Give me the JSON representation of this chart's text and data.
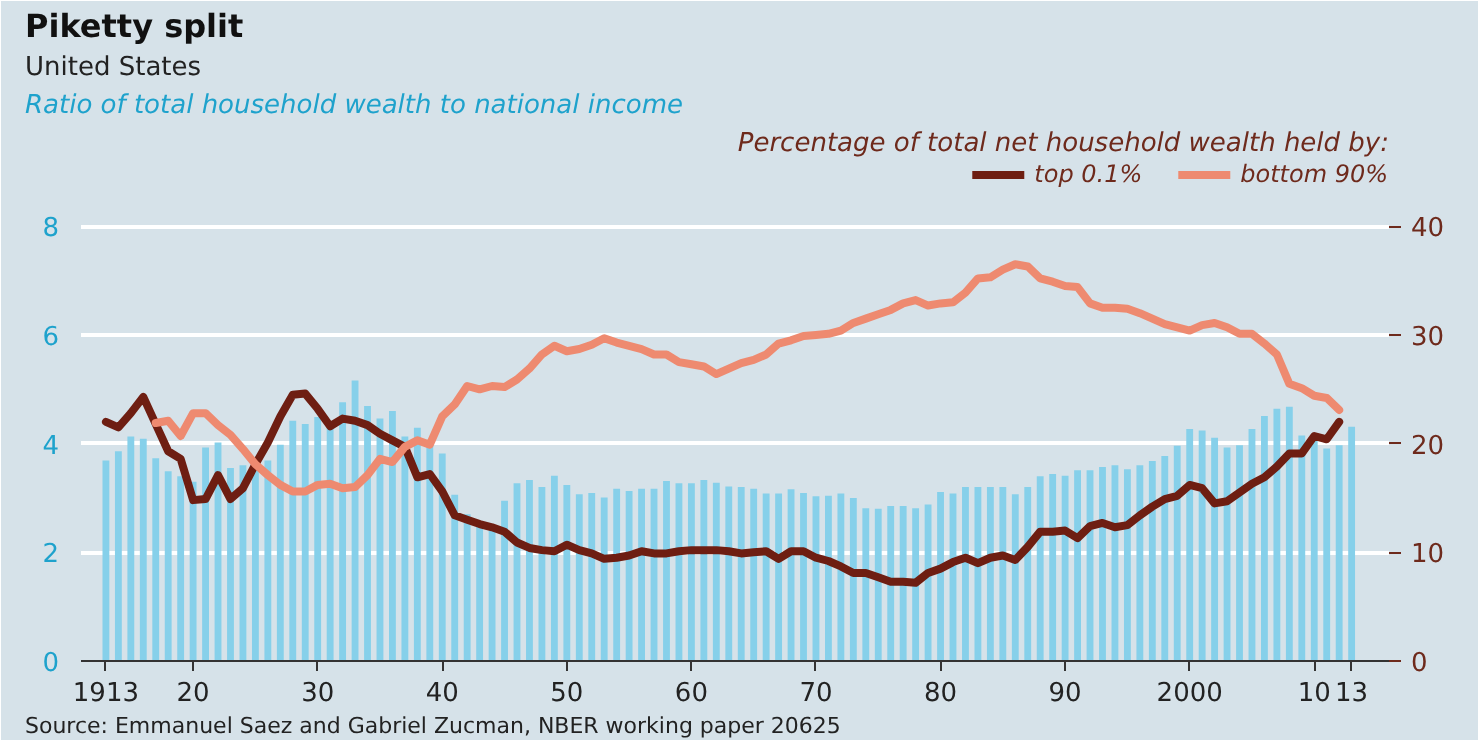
{
  "chart_data": {
    "type": "bar",
    "title": "Piketty split",
    "subtitle": "United States",
    "ylabel": "Ratio of total household wealth to national income",
    "y2label": "Percentage of total net household wealth held by:",
    "annotations": [
      "Source: Emmanuel Saez and Gabriel Zucman, NBER working paper 20625"
    ],
    "x": [
      1913,
      1914,
      1915,
      1916,
      1917,
      1918,
      1919,
      1920,
      1921,
      1922,
      1923,
      1924,
      1925,
      1926,
      1927,
      1928,
      1929,
      1930,
      1931,
      1932,
      1933,
      1934,
      1935,
      1936,
      1937,
      1938,
      1939,
      1940,
      1941,
      1942,
      1943,
      1944,
      1945,
      1946,
      1947,
      1948,
      1949,
      1950,
      1951,
      1952,
      1953,
      1954,
      1955,
      1956,
      1957,
      1958,
      1959,
      1960,
      1961,
      1962,
      1963,
      1964,
      1965,
      1966,
      1967,
      1968,
      1969,
      1970,
      1971,
      1972,
      1973,
      1974,
      1975,
      1976,
      1977,
      1978,
      1979,
      1980,
      1981,
      1982,
      1983,
      1984,
      1985,
      1986,
      1987,
      1988,
      1989,
      1990,
      1991,
      1992,
      1993,
      1994,
      1995,
      1996,
      1997,
      1998,
      1999,
      2000,
      2001,
      2002,
      2003,
      2004,
      2005,
      2006,
      2007,
      2008,
      2009,
      2010,
      2011,
      2012,
      2013
    ],
    "series": [
      {
        "color": "#86d0ea",
        "values": [
          3.69,
          3.86,
          4.13,
          4.09,
          3.73,
          3.49,
          3.4,
          3.3,
          3.93,
          4.02,
          3.55,
          3.6,
          3.5,
          3.69,
          3.98,
          4.42,
          4.36,
          4.49,
          4.3,
          4.76,
          5.16,
          4.69,
          4.46,
          4.6,
          4.13,
          4.29,
          4.0,
          3.82,
          3.06,
          2.7,
          2.5,
          2.4,
          2.95,
          3.27,
          3.33,
          3.2,
          3.41,
          3.24,
          3.07,
          3.09,
          3.01,
          3.17,
          3.13,
          3.17,
          3.17,
          3.31,
          3.27,
          3.27,
          3.33,
          3.28,
          3.21,
          3.2,
          3.17,
          3.08,
          3.08,
          3.16,
          3.09,
          3.03,
          3.04,
          3.08,
          3.0,
          2.81,
          2.8,
          2.85,
          2.85,
          2.81,
          2.88,
          3.11,
          3.08,
          3.2,
          3.2,
          3.2,
          3.2,
          3.07,
          3.2,
          3.4,
          3.44,
          3.41,
          3.51,
          3.51,
          3.57,
          3.6,
          3.53,
          3.6,
          3.68,
          3.77,
          3.96,
          4.27,
          4.24,
          4.11,
          3.93,
          3.97,
          4.27,
          4.51,
          4.64,
          4.68,
          4.15,
          4.11,
          3.91,
          3.97,
          4.31
        ]
      },
      {
        "type": "line",
        "axis": "y2",
        "name": "top 0.1%",
        "color": "#6e1e12",
        "values": [
          22.0,
          21.5,
          22.8,
          24.3,
          21.8,
          19.3,
          18.6,
          14.8,
          14.9,
          17.1,
          14.9,
          15.9,
          18.1,
          20.1,
          22.5,
          24.5,
          24.6,
          23.2,
          21.6,
          22.3,
          22.1,
          21.7,
          20.9,
          20.3,
          19.7,
          16.9,
          17.2,
          15.6,
          13.4,
          13.0,
          12.6,
          12.3,
          11.9,
          10.9,
          10.4,
          10.2,
          10.1,
          10.7,
          10.2,
          9.9,
          9.4,
          9.5,
          9.7,
          10.1,
          9.9,
          9.9,
          10.1,
          10.2,
          10.2,
          10.2,
          10.1,
          9.9,
          10.0,
          10.1,
          9.4,
          10.1,
          10.1,
          9.5,
          9.2,
          8.7,
          8.1,
          8.1,
          7.7,
          7.3,
          7.3,
          7.2,
          8.1,
          8.5,
          9.1,
          9.5,
          9.0,
          9.5,
          9.7,
          9.3,
          10.5,
          11.9,
          11.9,
          12.0,
          11.3,
          12.4,
          12.7,
          12.3,
          12.5,
          13.4,
          14.2,
          14.9,
          15.2,
          16.2,
          15.9,
          14.5,
          14.7,
          15.5,
          16.3,
          16.9,
          17.9,
          19.1,
          19.1,
          20.7,
          20.4,
          22.0,
          null
        ]
      },
      {
        "type": "line",
        "axis": "y2",
        "name": "bottom 90%",
        "color": "#ee8a70",
        "values": [
          null,
          null,
          null,
          null,
          21.9,
          22.1,
          20.7,
          22.8,
          22.8,
          21.7,
          20.8,
          19.5,
          18.1,
          17.1,
          16.2,
          15.6,
          15.6,
          16.2,
          16.3,
          15.9,
          16.0,
          17.1,
          18.6,
          18.3,
          19.7,
          20.3,
          19.9,
          22.5,
          23.6,
          25.3,
          25.0,
          25.3,
          25.2,
          25.9,
          26.9,
          28.2,
          29.0,
          28.5,
          28.7,
          29.1,
          29.7,
          29.3,
          29.0,
          28.7,
          28.2,
          28.2,
          27.5,
          27.3,
          27.1,
          26.4,
          26.9,
          27.4,
          27.7,
          28.2,
          29.2,
          29.5,
          29.9,
          30.0,
          30.1,
          30.4,
          31.1,
          31.5,
          31.9,
          32.3,
          32.9,
          33.2,
          32.7,
          32.9,
          33.0,
          33.9,
          35.2,
          35.3,
          36.0,
          36.5,
          36.3,
          35.2,
          34.9,
          34.5,
          34.4,
          32.9,
          32.5,
          32.5,
          32.4,
          32.0,
          31.5,
          31.0,
          30.7,
          30.4,
          30.9,
          31.1,
          30.7,
          30.1,
          30.1,
          29.2,
          28.2,
          25.5,
          25.1,
          24.4,
          24.2,
          23.1,
          null
        ]
      }
    ],
    "xlim": [
      1911,
      2016
    ],
    "xticks": [
      {
        "value": 1913,
        "label": "1913"
      },
      {
        "value": 1920,
        "label": "20"
      },
      {
        "value": 1930,
        "label": "30"
      },
      {
        "value": 1940,
        "label": "40"
      },
      {
        "value": 1950,
        "label": "50"
      },
      {
        "value": 1960,
        "label": "60"
      },
      {
        "value": 1970,
        "label": "70"
      },
      {
        "value": 1980,
        "label": "80"
      },
      {
        "value": 1990,
        "label": "90"
      },
      {
        "value": 2000,
        "label": "2000"
      },
      {
        "value": 2010,
        "label": "10"
      },
      {
        "value": 2013,
        "label": "13"
      }
    ],
    "ylim": [
      0,
      9.2
    ],
    "yticks": [
      0,
      2,
      4,
      6,
      8
    ],
    "y2lim": [
      0,
      46
    ],
    "y2ticks": [
      0,
      10,
      20,
      30,
      40
    ],
    "grid": "y",
    "legend": "top right"
  }
}
